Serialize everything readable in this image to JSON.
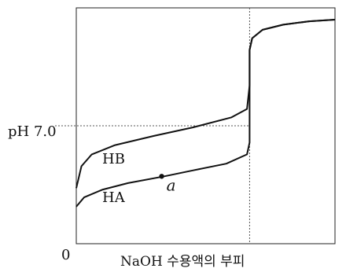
{
  "chart_data": {
    "type": "line",
    "title": "",
    "xlabel": "NaOH 수용액의 부피",
    "ylabel": "",
    "y_tick": "pH 7.0",
    "origin_label": "0",
    "x_range": [
      0,
      1
    ],
    "y_range": [
      0,
      14
    ],
    "equivalence_x": 0.67,
    "reference_y": 7.0,
    "series": [
      {
        "name": "HB",
        "points": [
          [
            0.0,
            3.3
          ],
          [
            0.02,
            4.6
          ],
          [
            0.06,
            5.3
          ],
          [
            0.15,
            5.85
          ],
          [
            0.3,
            6.4
          ],
          [
            0.45,
            6.9
          ],
          [
            0.6,
            7.5
          ],
          [
            0.66,
            8.0
          ],
          [
            0.67,
            9.4
          ],
          [
            0.67,
            11.5
          ],
          [
            0.68,
            12.2
          ],
          [
            0.72,
            12.7
          ],
          [
            0.8,
            13.0
          ],
          [
            0.9,
            13.2
          ],
          [
            1.0,
            13.3
          ]
        ]
      },
      {
        "name": "HA",
        "points": [
          [
            0.0,
            2.2
          ],
          [
            0.03,
            2.75
          ],
          [
            0.1,
            3.2
          ],
          [
            0.2,
            3.6
          ],
          [
            0.34,
            4.0
          ],
          [
            0.45,
            4.35
          ],
          [
            0.58,
            4.75
          ],
          [
            0.66,
            5.3
          ],
          [
            0.67,
            6.0
          ],
          [
            0.67,
            9.4
          ],
          [
            0.67,
            11.5
          ],
          [
            0.68,
            12.2
          ],
          [
            0.72,
            12.7
          ],
          [
            0.8,
            13.0
          ],
          [
            0.9,
            13.2
          ],
          [
            1.0,
            13.3
          ]
        ]
      }
    ],
    "point_a": {
      "label": "a",
      "x": 0.33,
      "y": 4.0
    }
  }
}
